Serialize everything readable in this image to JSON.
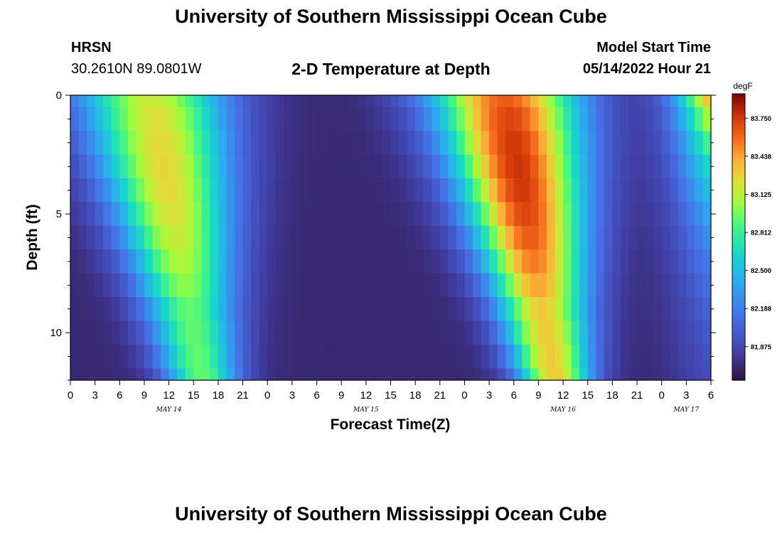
{
  "header": {
    "title": "University of Southern Mississippi Ocean Cube",
    "station": "HRSN",
    "coords": "30.2610N  89.0801W",
    "plot_title": "2-D Temperature at Depth",
    "model_start_label": "Model Start Time",
    "model_start_value": "05/14/2022 Hour 21"
  },
  "footer": {
    "title": "University of Southern Mississippi Ocean Cube"
  },
  "chart_data": {
    "type": "heatmap",
    "title": "2-D Temperature at Depth",
    "xlabel": "Forecast Time(Z)",
    "ylabel": "Depth (ft)",
    "units": "degF",
    "x_hours": [
      0,
      3,
      6,
      9,
      12,
      15,
      18,
      21,
      24,
      27,
      30,
      33,
      36,
      39,
      42,
      45,
      48,
      51,
      54,
      57,
      60,
      63,
      66,
      69,
      72,
      75,
      78
    ],
    "x_tick_labels": [
      "0",
      "3",
      "6",
      "9",
      "12",
      "15",
      "18",
      "21",
      "0",
      "3",
      "6",
      "9",
      "12",
      "15",
      "18",
      "21",
      "0",
      "3",
      "6",
      "9",
      "12",
      "15",
      "18",
      "21",
      "0",
      "3",
      "6"
    ],
    "month_labels": [
      {
        "hour": 12,
        "text": "MAY 14"
      },
      {
        "hour": 36,
        "text": "MAY 15"
      },
      {
        "hour": 60,
        "text": "MAY 16"
      },
      {
        "hour": 75,
        "text": "MAY 17"
      }
    ],
    "x_range": [
      0,
      78
    ],
    "y_range": [
      0,
      12
    ],
    "y_ticks": [
      0,
      5,
      10
    ],
    "y_tick_labels": [
      "0",
      "5",
      "10"
    ],
    "colorbar": {
      "range": [
        81.6,
        83.95
      ],
      "tick_values": [
        83.75,
        83.438,
        83.125,
        82.812,
        82.5,
        82.188,
        81.875
      ],
      "tick_labels": [
        "83.750",
        "83.438",
        "83.125",
        "82.812",
        "82.500",
        "82.188",
        "81.875"
      ]
    },
    "depths": [
      0,
      1,
      2,
      3,
      4,
      5,
      6,
      7,
      8,
      9,
      10,
      11,
      12
    ],
    "time_step_hours": 1,
    "warm_events": [
      {
        "peak_hour": 16,
        "amplitude": 1.55
      },
      {
        "peak_hour": 59,
        "amplitude": 2.05
      }
    ],
    "base_temperature": 81.72,
    "surface_phase_lead_hours": 6,
    "event_width_surface_hours": 9,
    "event_width_bottom_hours": 4.5
  }
}
